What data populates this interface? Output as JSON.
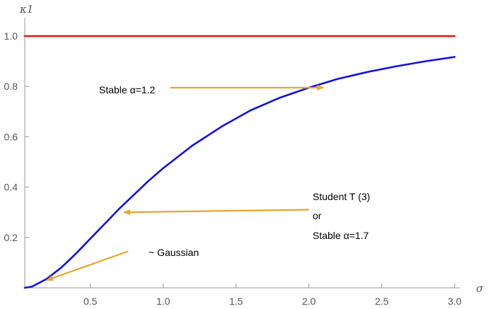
{
  "chart_data": {
    "type": "line",
    "xlabel": "σ",
    "ylabel": "κ1",
    "xlim": [
      0.05,
      3.1
    ],
    "ylim": [
      0,
      1.08
    ],
    "x_ticks": [
      "0.5",
      "1.0",
      "1.5",
      "2.0",
      "2.5",
      "3.0"
    ],
    "y_ticks": [
      "0.2",
      "0.4",
      "0.6",
      "0.8",
      "1.0"
    ],
    "grid": false,
    "series": [
      {
        "color": "#ee1111",
        "x": [
          0.05,
          3.0
        ],
        "y": [
          1.0,
          1.0
        ]
      },
      {
        "color": "#1111dd",
        "x": [
          0.05,
          0.1,
          0.2,
          0.3,
          0.4,
          0.5,
          0.6,
          0.7,
          0.8,
          0.9,
          1.0,
          1.2,
          1.4,
          1.6,
          1.8,
          2.0,
          2.2,
          2.4,
          2.6,
          2.8,
          3.0
        ],
        "y": [
          0.0,
          0.005,
          0.035,
          0.08,
          0.135,
          0.195,
          0.255,
          0.315,
          0.37,
          0.425,
          0.475,
          0.565,
          0.64,
          0.705,
          0.755,
          0.795,
          0.83,
          0.857,
          0.88,
          0.9,
          0.917
        ]
      }
    ],
    "annotations": [
      {
        "text": "Stable α=1.2",
        "arrow_color": "#e8a42a",
        "arrow_from": [
          1.05,
          0.795
        ],
        "arrow_to": [
          2.1,
          0.795
        ]
      },
      {
        "text": "Student T (3)",
        "arrow_color": "#e8a42a",
        "arrow_from": [
          2.0,
          0.31
        ],
        "arrow_to": [
          0.73,
          0.3
        ]
      },
      {
        "text": "or"
      },
      {
        "text": "Stable α=1.7"
      },
      {
        "text": "~ Gaussian",
        "arrow_color": "#e8a42a",
        "arrow_from": [
          0.76,
          0.145
        ],
        "arrow_to": [
          0.2,
          0.03
        ]
      }
    ]
  }
}
